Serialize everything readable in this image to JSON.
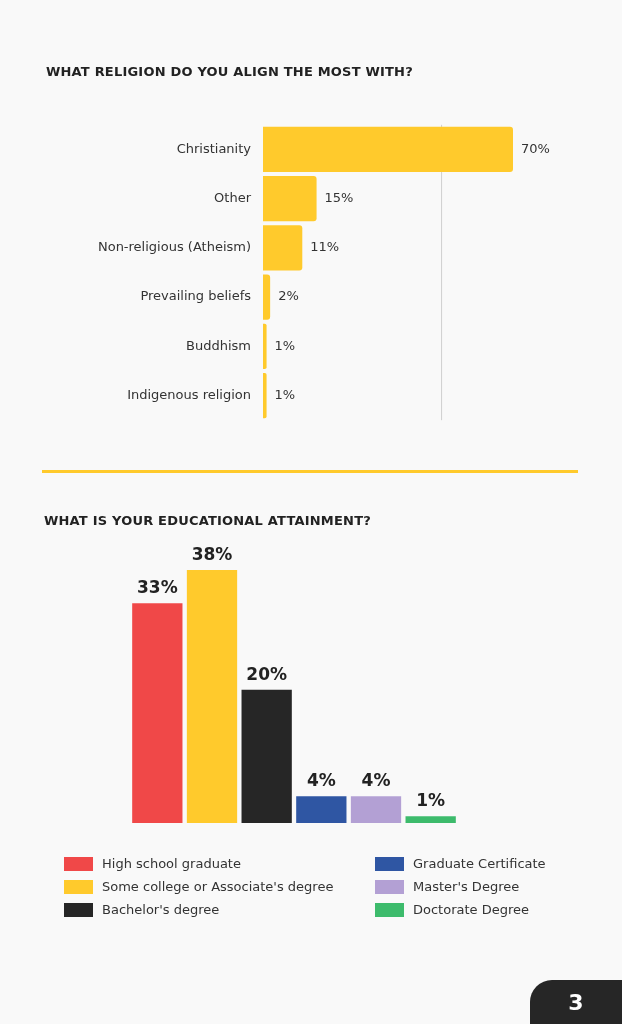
{
  "chart_data": [
    {
      "type": "bar",
      "title": "WHAT RELIGION DO YOU ALIGN THE MOST WITH?",
      "orientation": "horizontal",
      "categories": [
        "Christianity",
        "Other",
        "Non-religious (Atheism)",
        "Prevailing beliefs",
        "Buddhism",
        "Indigenous religion"
      ],
      "values": [
        70,
        15,
        11,
        2,
        1,
        1
      ],
      "value_labels": [
        "70%",
        "15%",
        "11%",
        "2%",
        "1%",
        "1%"
      ],
      "color": "#ffca2c",
      "ref_lines": [
        {
          "axis": "x",
          "value": 50,
          "color": "#cfcfcf"
        }
      ],
      "tick_labels": "y"
    },
    {
      "type": "bar",
      "title": "WHAT IS YOUR EDUCATIONAL ATTAINMENT?",
      "categories": [
        null
      ],
      "series": [
        {
          "name": "High school graduate",
          "color": "#f04848",
          "values": [
            33
          ],
          "value_labels": [
            "33%"
          ]
        },
        {
          "name": "Some college or Associate's degree",
          "color": "#ffca2c",
          "values": [
            38
          ],
          "value_labels": [
            "38%"
          ]
        },
        {
          "name": "Bachelor's degree",
          "color": "#262626",
          "values": [
            20
          ],
          "value_labels": [
            "20%"
          ]
        },
        {
          "name": "Graduate Certificate",
          "color": "#2f56a3",
          "values": [
            4
          ],
          "value_labels": [
            "4%"
          ]
        },
        {
          "name": "Master's Degree",
          "color": "#b3a0d4",
          "values": [
            4
          ],
          "value_labels": [
            "4%"
          ]
        },
        {
          "name": "Doctorate Degree",
          "color": "#3dbb6c",
          "values": [
            1
          ],
          "value_labels": [
            "1%"
          ]
        }
      ],
      "tick_labels": false,
      "legend": "bottom",
      "annotations": [
        "3"
      ]
    }
  ]
}
